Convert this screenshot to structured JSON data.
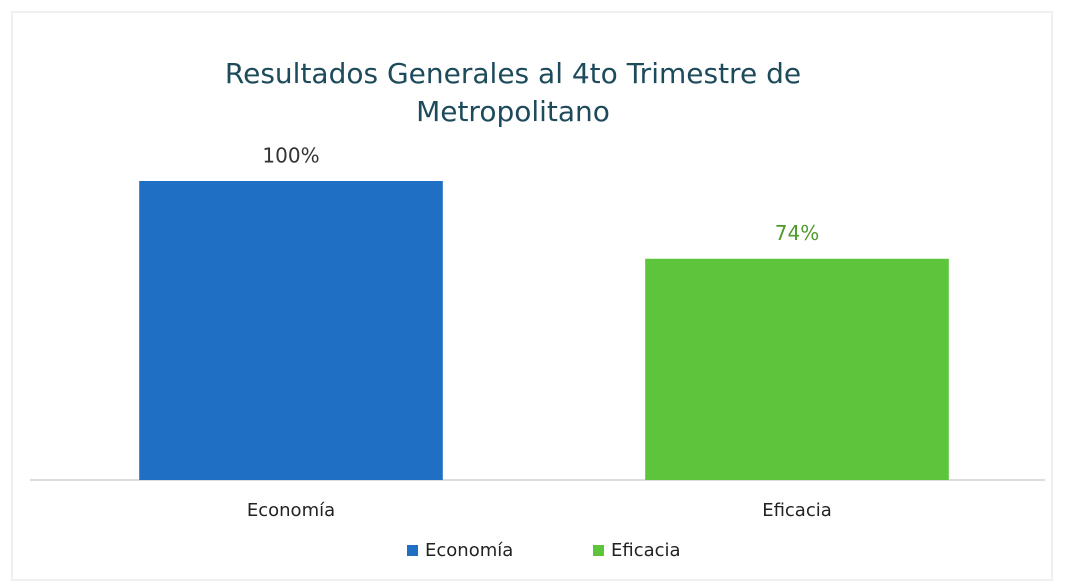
{
  "chart_data": {
    "type": "bar",
    "title": [
      "Resultados Generales al 4to Trimestre de",
      "Metropolitano"
    ],
    "categories": [
      "Economía",
      "Eficacia"
    ],
    "series": [
      {
        "name": "Economía",
        "color": "#1f6fc5",
        "label_color": "#333333",
        "values": [
          100,
          null
        ],
        "value_labels": [
          "100%",
          null
        ]
      },
      {
        "name": "Eficacia",
        "color": "#5cc53c",
        "label_color": "#4f9a2c",
        "values": [
          null,
          74
        ],
        "value_labels": [
          null,
          "74%"
        ]
      }
    ],
    "ylim": [
      0,
      100
    ],
    "grid": false
  }
}
